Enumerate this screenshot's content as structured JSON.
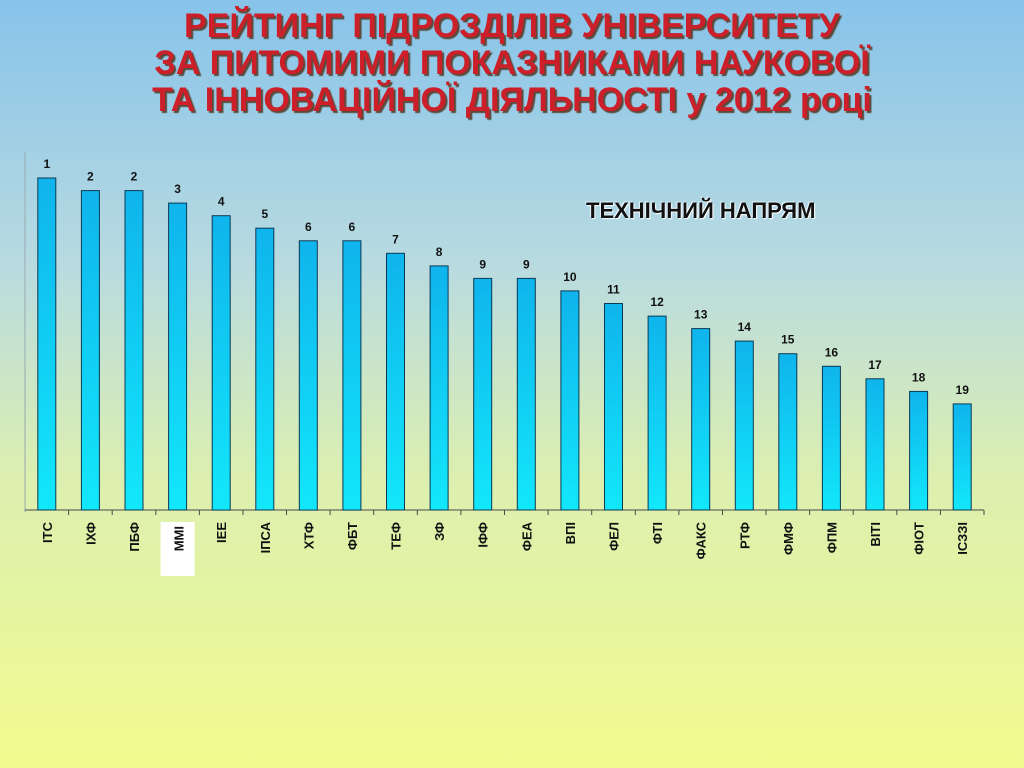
{
  "title": {
    "line1": "РЕЙТИНГ ПІДРОЗДІЛІВ УНІВЕРСИТЕТУ",
    "line2": "ЗА ПИТОМИМИ ПОКАЗНИКАМИ НАУКОВОЇ",
    "line3": "ТА ІННОВАЦІЙНОЇ ДІЯЛЬНОСТІ у 2012 році"
  },
  "subtitle": "ТЕХНІЧНИЙ НАПРЯМ",
  "colors": {
    "title": "#cc1f2a",
    "bar_top": "#0fb4ec",
    "bar_bottom": "#12e7fb",
    "highlight_text": "#e8141e",
    "highlight_bg": "#ffffff"
  },
  "chart_data": {
    "type": "bar",
    "categories": [
      "ІТС",
      "ІХФ",
      "ПБФ",
      "ММІ",
      "ІЕЕ",
      "ІПСА",
      "ХТФ",
      "ФБТ",
      "ТЕФ",
      "ЗФ",
      "ІФФ",
      "ФЕА",
      "ВПІ",
      "ФЕЛ",
      "ФТІ",
      "ФАКС",
      "РТФ",
      "ФМФ",
      "ФПМ",
      "ВІТІ",
      "ФІОТ",
      "ІСЗЗІ"
    ],
    "values": [
      1,
      2,
      2,
      3,
      4,
      5,
      6,
      6,
      7,
      8,
      9,
      9,
      10,
      11,
      12,
      13,
      14,
      15,
      16,
      17,
      18,
      19
    ],
    "highlighted": "ММІ",
    "ylim": [
      0,
      25
    ],
    "grid": false,
    "legend": "none"
  }
}
